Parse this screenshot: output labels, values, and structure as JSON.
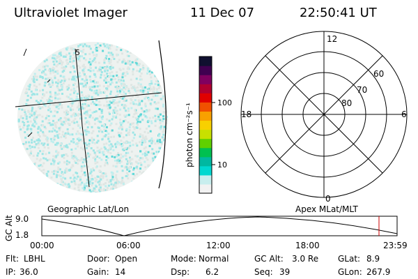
{
  "header": {
    "instrument": "Ultraviolet Imager",
    "date": "11 Dec 07",
    "time": "22:50:41 UT"
  },
  "colorbar": {
    "unit_label": "photon cm⁻²s⁻¹",
    "ticks": [
      "100",
      "10"
    ],
    "colors": [
      "#f2f2f2",
      "#c8eeee",
      "#00d8d0",
      "#00b8a0",
      "#00c050",
      "#60d000",
      "#c8e000",
      "#f8d000",
      "#f8a000",
      "#f05000",
      "#e00000",
      "#b00030",
      "#800060",
      "#400050",
      "#101030"
    ]
  },
  "image_panel": {
    "longitude_marker": "5"
  },
  "polar_grid": {
    "latitudes": [
      "60",
      "70",
      "80"
    ],
    "mlt_top": "12",
    "mlt_left": "18",
    "mlt_right": "6",
    "mlt_bottom": "0"
  },
  "altitude_plot": {
    "left_title": "Geographic Lat/Lon",
    "right_title": "Apex MLat/MLT",
    "ylabel": "GC Alt",
    "yticks": [
      "9.0",
      "1.8"
    ],
    "xticks": [
      "00:00",
      "06:00",
      "12:00",
      "18:00",
      "23:59"
    ],
    "current_time_marker_color": "#cc0000"
  },
  "status": {
    "row1": [
      {
        "label": "Flt:",
        "value": "LBHL"
      },
      {
        "label": "Door:",
        "value": "Open"
      },
      {
        "label": "Mode:",
        "value": "Normal"
      },
      {
        "label": "GC Alt:",
        "value": "3.0 Re"
      },
      {
        "label": "GLat:",
        "value": "8.9"
      }
    ],
    "row2": [
      {
        "label": "IP:",
        "value": "36.0"
      },
      {
        "label": "Gain:",
        "value": "14"
      },
      {
        "label": "Dsp:",
        "value": "6.2"
      },
      {
        "label": "Seq:",
        "value": "39"
      },
      {
        "label": "GLon:",
        "value": "267.9"
      }
    ]
  }
}
